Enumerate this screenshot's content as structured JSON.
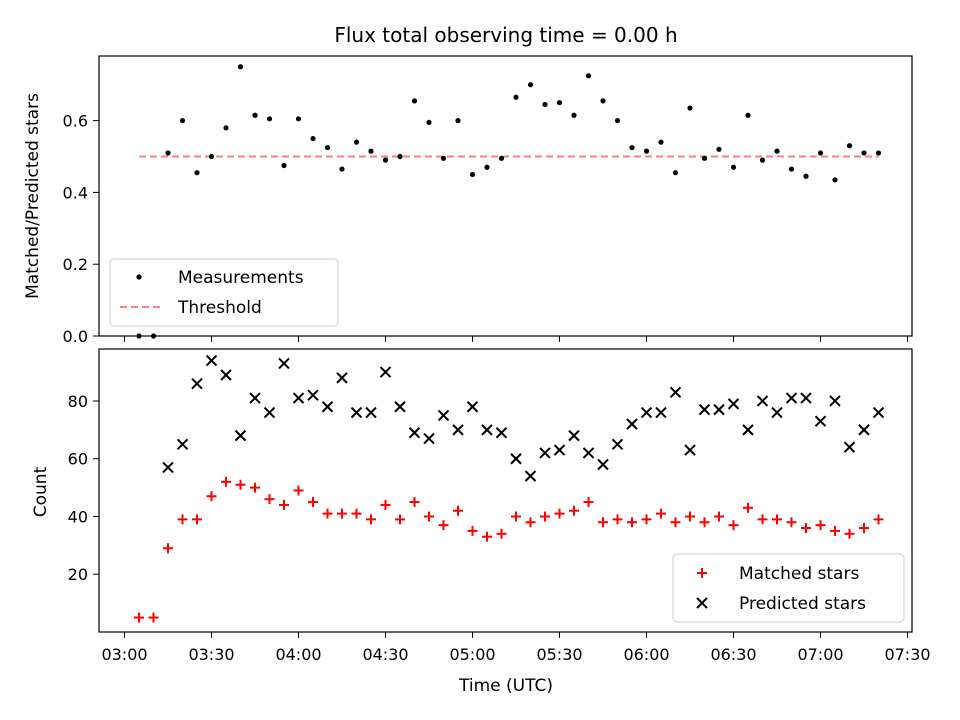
{
  "chart_data": [
    {
      "type": "scatter",
      "title": "Flux total observing time = 0.00 h",
      "xlabel": "",
      "ylabel": "Matched/Predicted stars",
      "ylim": [
        0,
        0.78
      ],
      "yticks": [
        0.0,
        0.2,
        0.4,
        0.6
      ],
      "ytick_labels": [
        "0.0",
        "0.2",
        "0.4",
        "0.6"
      ],
      "legend": {
        "position": "lower-left",
        "entries": [
          "Measurements",
          "Threshold"
        ]
      },
      "threshold": {
        "value": 0.5,
        "x_start": "03:05",
        "x_end": "07:20",
        "color": "#ff7f7f"
      },
      "series": [
        {
          "name": "Measurements",
          "color": "#000000",
          "marker": "dot",
          "x": [
            "03:05",
            "03:10",
            "03:15",
            "03:20",
            "03:25",
            "03:30",
            "03:35",
            "03:40",
            "03:45",
            "03:50",
            "03:55",
            "04:00",
            "04:05",
            "04:10",
            "04:15",
            "04:20",
            "04:25",
            "04:30",
            "04:35",
            "04:40",
            "04:45",
            "04:50",
            "04:55",
            "05:00",
            "05:05",
            "05:10",
            "05:15",
            "05:20",
            "05:25",
            "05:30",
            "05:35",
            "05:40",
            "05:45",
            "05:50",
            "05:55",
            "06:00",
            "06:05",
            "06:10",
            "06:15",
            "06:20",
            "06:25",
            "06:30",
            "06:35",
            "06:40",
            "06:45",
            "06:50",
            "06:55",
            "07:00",
            "07:05",
            "07:10",
            "07:15",
            "07:20"
          ],
          "y": [
            0.0,
            0.0,
            0.51,
            0.6,
            0.455,
            0.5,
            0.58,
            0.75,
            0.615,
            0.605,
            0.475,
            0.605,
            0.55,
            0.525,
            0.465,
            0.54,
            0.515,
            0.49,
            0.5,
            0.655,
            0.595,
            0.495,
            0.6,
            0.45,
            0.47,
            0.495,
            0.665,
            0.7,
            0.645,
            0.65,
            0.615,
            0.725,
            0.655,
            0.6,
            0.525,
            0.515,
            0.54,
            0.455,
            0.635,
            0.495,
            0.52,
            0.47,
            0.615,
            0.49,
            0.515,
            0.465,
            0.445,
            0.51,
            0.435,
            0.53,
            0.51,
            0.51
          ]
        }
      ]
    },
    {
      "type": "scatter",
      "title": "",
      "xlabel": "Time (UTC)",
      "ylabel": "Count",
      "ylim": [
        0,
        98
      ],
      "yticks": [
        20,
        40,
        60,
        80
      ],
      "ytick_labels": [
        "20",
        "40",
        "60",
        "80"
      ],
      "x_ticks": [
        "03:00",
        "03:30",
        "04:00",
        "04:30",
        "05:00",
        "05:30",
        "06:00",
        "06:30",
        "07:00",
        "07:30"
      ],
      "legend": {
        "position": "lower-right",
        "entries": [
          "Matched stars",
          "Predicted stars"
        ]
      },
      "series": [
        {
          "name": "Matched stars",
          "color": "#ff0000",
          "marker": "plus",
          "x": [
            "03:05",
            "03:10",
            "03:15",
            "03:20",
            "03:25",
            "03:30",
            "03:35",
            "03:40",
            "03:45",
            "03:50",
            "03:55",
            "04:00",
            "04:05",
            "04:10",
            "04:15",
            "04:20",
            "04:25",
            "04:30",
            "04:35",
            "04:40",
            "04:45",
            "04:50",
            "04:55",
            "05:00",
            "05:05",
            "05:10",
            "05:15",
            "05:20",
            "05:25",
            "05:30",
            "05:35",
            "05:40",
            "05:45",
            "05:50",
            "05:55",
            "06:00",
            "06:05",
            "06:10",
            "06:15",
            "06:20",
            "06:25",
            "06:30",
            "06:35",
            "06:40",
            "06:45",
            "06:50",
            "06:55",
            "07:00",
            "07:05",
            "07:10",
            "07:15",
            "07:20"
          ],
          "y": [
            5,
            5,
            29,
            39,
            39,
            47,
            52,
            51,
            50,
            46,
            44,
            49,
            45,
            41,
            41,
            41,
            39,
            44,
            39,
            45,
            40,
            37,
            42,
            35,
            33,
            34,
            40,
            38,
            40,
            41,
            42,
            45,
            38,
            39,
            38,
            39,
            41,
            38,
            40,
            38,
            40,
            37,
            43,
            39,
            39,
            38,
            36,
            37,
            35,
            34,
            36,
            39
          ]
        },
        {
          "name": "Predicted stars",
          "color": "#000000",
          "marker": "x",
          "x": [
            "03:15",
            "03:20",
            "03:25",
            "03:30",
            "03:35",
            "03:40",
            "03:45",
            "03:50",
            "03:55",
            "04:00",
            "04:05",
            "04:10",
            "04:15",
            "04:20",
            "04:25",
            "04:30",
            "04:35",
            "04:40",
            "04:45",
            "04:50",
            "04:55",
            "05:00",
            "05:05",
            "05:10",
            "05:15",
            "05:20",
            "05:25",
            "05:30",
            "05:35",
            "05:40",
            "05:45",
            "05:50",
            "05:55",
            "06:00",
            "06:05",
            "06:10",
            "06:15",
            "06:20",
            "06:25",
            "06:30",
            "06:35",
            "06:40",
            "06:45",
            "06:50",
            "06:55",
            "07:00",
            "07:05",
            "07:10",
            "07:15",
            "07:20"
          ],
          "y": [
            57,
            65,
            86,
            94,
            89,
            68,
            81,
            76,
            93,
            81,
            82,
            78,
            88,
            76,
            76,
            90,
            78,
            69,
            67,
            75,
            70,
            78,
            70,
            69,
            60,
            54,
            62,
            63,
            68,
            62,
            58,
            65,
            72,
            76,
            76,
            83,
            63,
            77,
            77,
            79,
            70,
            80,
            76,
            81,
            81,
            73,
            80,
            64,
            70,
            76
          ]
        }
      ]
    }
  ]
}
